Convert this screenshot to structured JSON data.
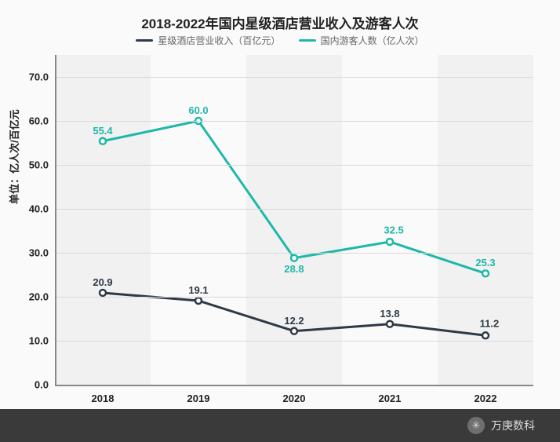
{
  "chart": {
    "type": "line",
    "title": "2018-2022年国内星级酒店营业收入及游客人次",
    "title_fontsize": 17,
    "yaxis_label": "单位：亿人次/百亿元",
    "yaxis_label_fontsize": 13,
    "background_color": "#fafafa",
    "band_color": "#f1f1f1",
    "grid_color": "#d9d9d9",
    "axis_color": "#888888",
    "line_width": 3,
    "marker_style": "circle-open",
    "marker_size": 6,
    "label_fontsize": 13,
    "ylim": [
      0,
      75
    ],
    "yticks": [
      0.0,
      10.0,
      20.0,
      30.0,
      40.0,
      50.0,
      60.0,
      70.0
    ],
    "ytick_labels": [
      "0.0",
      "10.0",
      "20.0",
      "30.0",
      "40.0",
      "50.0",
      "60.0",
      "70.0"
    ],
    "categories": [
      "2018",
      "2019",
      "2020",
      "2021",
      "2022"
    ],
    "series": [
      {
        "key": "revenue",
        "label": "星级酒店营业收入（百亿元）",
        "color": "#2e3a46",
        "values": [
          20.9,
          19.1,
          12.2,
          13.8,
          11.2
        ]
      },
      {
        "key": "tourists",
        "label": "国内游客人数（亿人次）",
        "color": "#1fb8a8",
        "values": [
          55.4,
          60.0,
          28.8,
          32.5,
          25.3
        ]
      }
    ]
  },
  "footer": {
    "brand": "万庚数科",
    "icon_glyph": "✳"
  }
}
